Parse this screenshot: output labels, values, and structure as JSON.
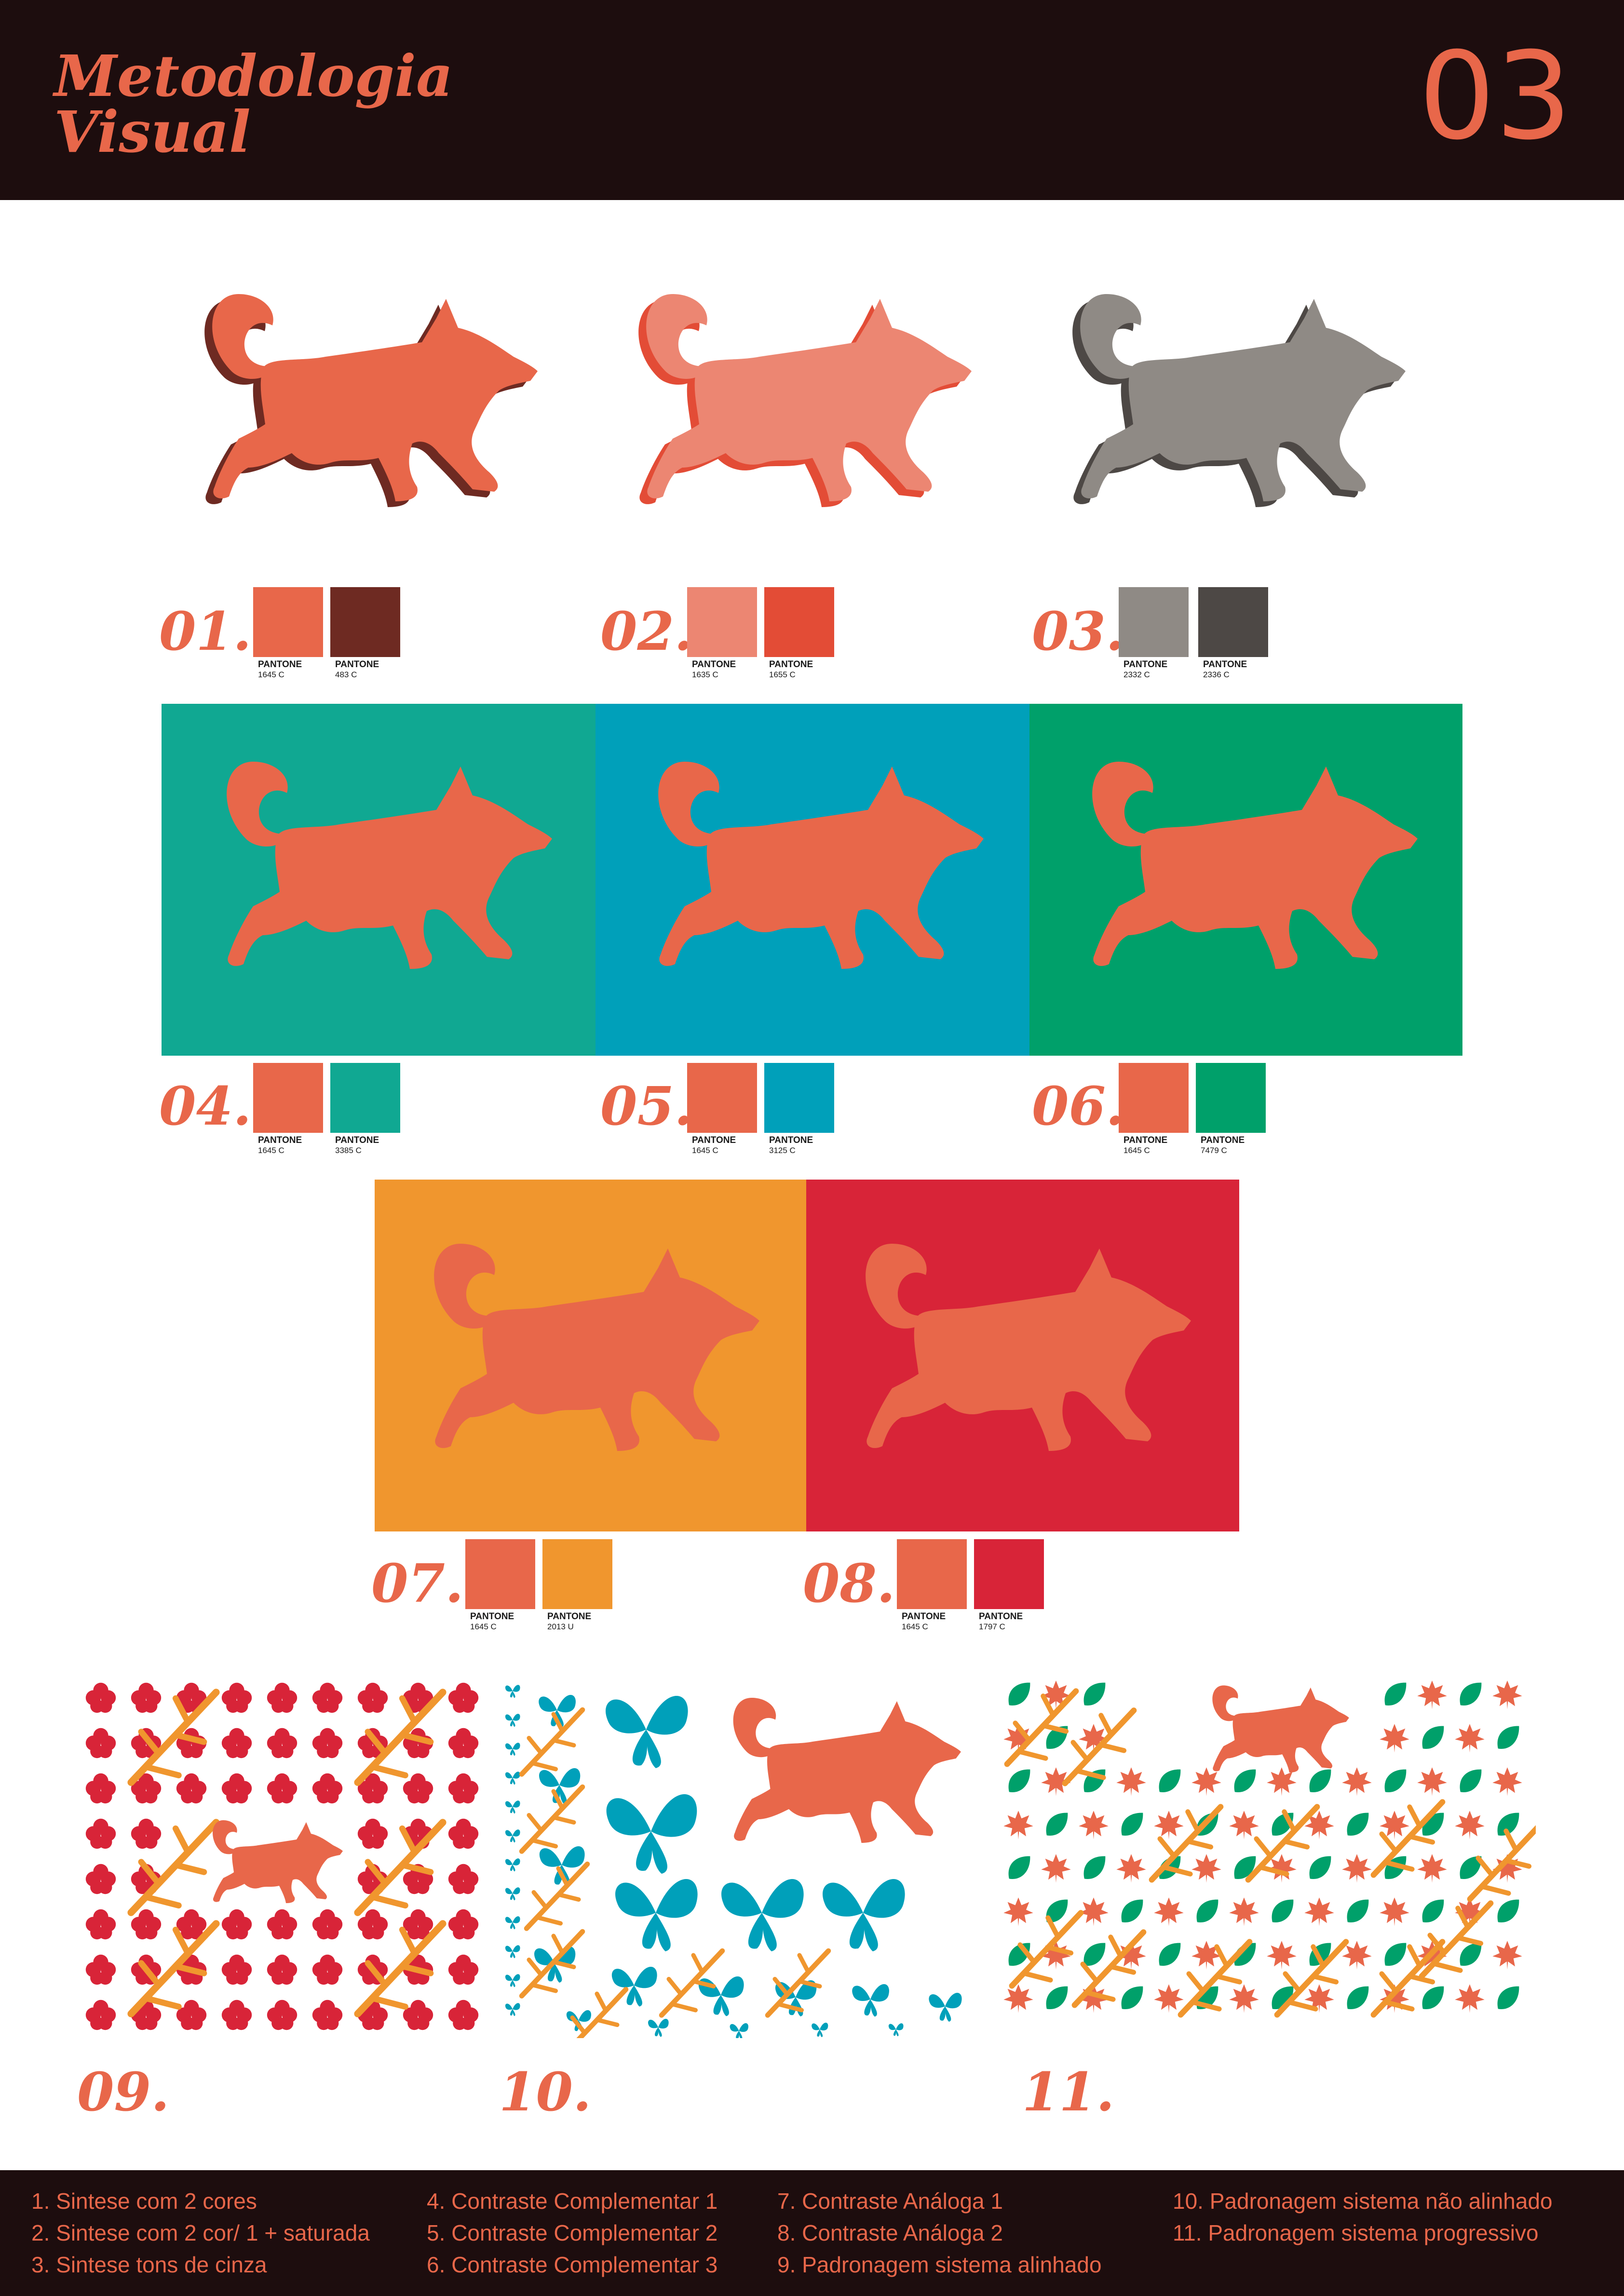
{
  "header": {
    "title_line1": "Metodologia",
    "title_line2": "Visual",
    "page_number": "03"
  },
  "colors": {
    "orange_1645": "#e8674a",
    "maroon_483": "#6e2a22",
    "salmon_1635": "#ec8672",
    "red_1655": "#e34c36",
    "gray_2332": "#8f8a85",
    "dark_gray_2336": "#4d4845",
    "teal_3385": "#10a892",
    "cyan_3125": "#00a0ba",
    "green_7479": "#00a06a",
    "orange_2013": "#f0962e",
    "crimson_1797": "#d82438"
  },
  "swatch_brand": "PANTONE",
  "variants": [
    {
      "label": "01.",
      "swatches": [
        {
          "hex": "#e8674a",
          "code": "1645 C"
        },
        {
          "hex": "#6e2a22",
          "code": "483 C"
        }
      ]
    },
    {
      "label": "02.",
      "swatches": [
        {
          "hex": "#ec8672",
          "code": "1635 C"
        },
        {
          "hex": "#e34c36",
          "code": "1655 C"
        }
      ]
    },
    {
      "label": "03.",
      "swatches": [
        {
          "hex": "#8f8a85",
          "code": "2332 C"
        },
        {
          "hex": "#4d4845",
          "code": "2336 C"
        }
      ]
    },
    {
      "label": "04.",
      "swatches": [
        {
          "hex": "#e8674a",
          "code": "1645 C"
        },
        {
          "hex": "#10a892",
          "code": "3385 C"
        }
      ]
    },
    {
      "label": "05.",
      "swatches": [
        {
          "hex": "#e8674a",
          "code": "1645 C"
        },
        {
          "hex": "#00a0ba",
          "code": "3125 C"
        }
      ]
    },
    {
      "label": "06.",
      "swatches": [
        {
          "hex": "#e8674a",
          "code": "1645 C"
        },
        {
          "hex": "#00a06a",
          "code": "7479 C"
        }
      ]
    },
    {
      "label": "07.",
      "swatches": [
        {
          "hex": "#e8674a",
          "code": "1645 C"
        },
        {
          "hex": "#f0962e",
          "code": "2013 U"
        }
      ]
    },
    {
      "label": "08.",
      "swatches": [
        {
          "hex": "#e8674a",
          "code": "1645 C"
        },
        {
          "hex": "#d82438",
          "code": "1797 C"
        }
      ]
    }
  ],
  "patterns": [
    {
      "label": "09."
    },
    {
      "label": "10."
    },
    {
      "label": "11."
    }
  ],
  "legend": [
    "1. Sintese com 2 cores",
    "2. Sintese com 2 cor/ 1 + saturada",
    "3. Sintese tons de cinza",
    "4. Contraste Complementar 1",
    "5. Contraste Complementar 2",
    "6. Contraste Complementar 3",
    "7. Contraste Análoga 1",
    "8. Contraste Análoga 2",
    "9. Padronagem sistema alinhado",
    "10. Padronagem sistema não alinhado",
    "11. Padronagem sistema progressivo"
  ]
}
